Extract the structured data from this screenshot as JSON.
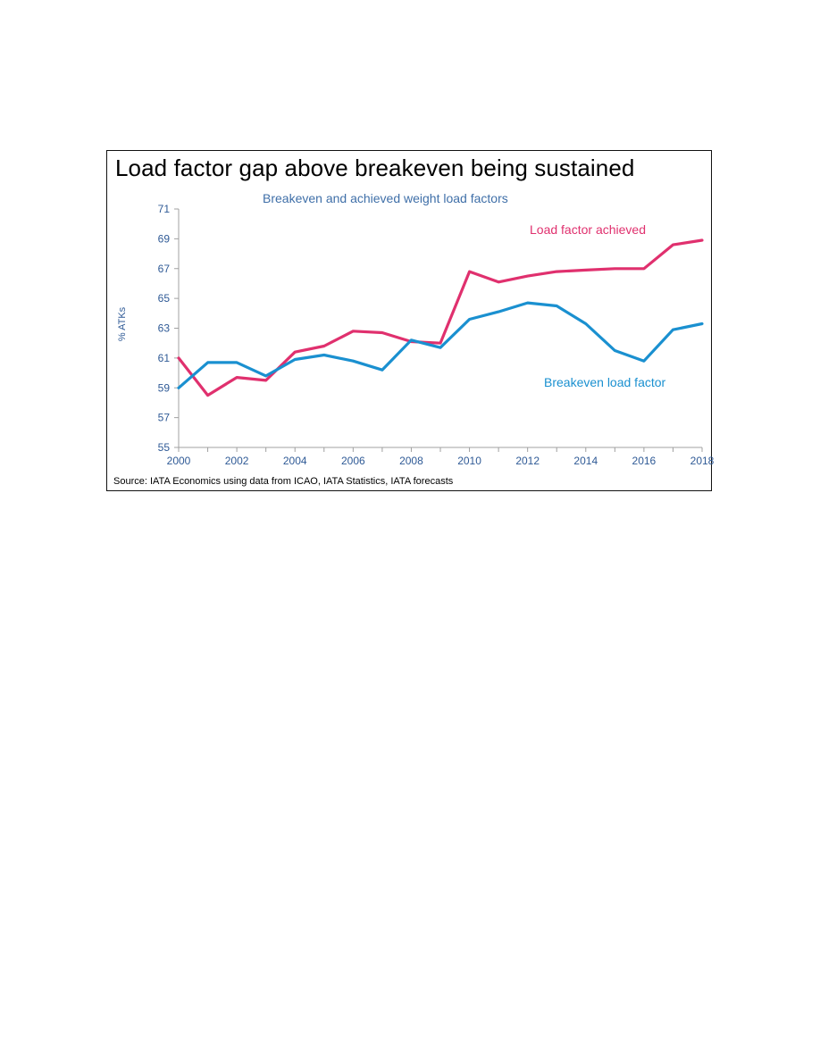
{
  "panel": {
    "title": "Load factor gap above breakeven being sustained",
    "source": "Source: IATA Economics using data from ICAO, IATA Statistics, IATA forecasts"
  },
  "colors": {
    "achieved": "#e0306e",
    "breakeven": "#1a90d0",
    "subtitle": "#3f6fa8",
    "axis_text": "#2f5a96",
    "axis_line": "#a0a0a0"
  },
  "chart_data": {
    "type": "line",
    "title": "Breakeven and achieved weight load factors",
    "xlabel": "",
    "ylabel": "% ATKs",
    "ylim": [
      55,
      71
    ],
    "y_ticks": [
      55,
      57,
      59,
      61,
      63,
      65,
      67,
      69,
      71
    ],
    "x_ticks": [
      2000,
      2002,
      2004,
      2006,
      2008,
      2010,
      2012,
      2014,
      2016,
      2018
    ],
    "grid": false,
    "legend": "direct labels",
    "x": [
      2000,
      2001,
      2002,
      2003,
      2004,
      2005,
      2006,
      2007,
      2008,
      2009,
      2010,
      2011,
      2012,
      2013,
      2014,
      2015,
      2016,
      2017,
      2018
    ],
    "series": [
      {
        "name": "Load factor achieved",
        "values": [
          61.0,
          58.5,
          59.7,
          59.5,
          61.4,
          61.8,
          62.8,
          62.7,
          62.1,
          62.0,
          66.8,
          66.1,
          66.5,
          66.8,
          66.9,
          67.0,
          67.0,
          68.6,
          68.9
        ]
      },
      {
        "name": "Breakeven load factor",
        "values": [
          59.0,
          60.7,
          60.7,
          59.8,
          60.9,
          61.2,
          60.8,
          60.2,
          62.2,
          61.7,
          63.6,
          64.1,
          64.7,
          64.5,
          63.3,
          61.5,
          60.8,
          62.9,
          63.3
        ]
      }
    ]
  }
}
